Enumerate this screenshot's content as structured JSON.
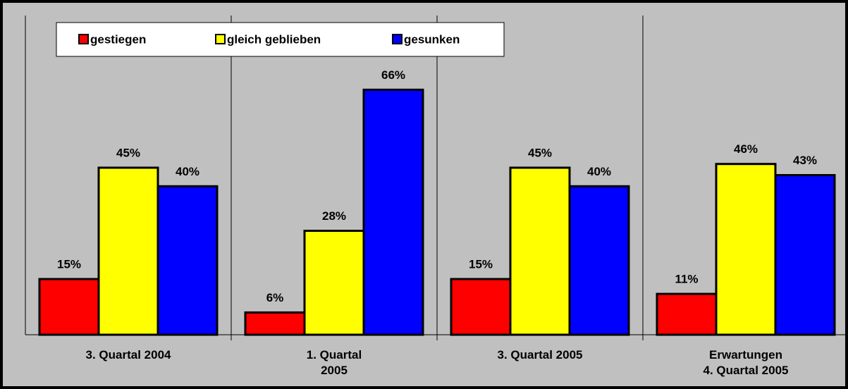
{
  "chart_data": {
    "type": "bar",
    "categories": [
      "3. Quartal 2004",
      "1. Quartal\n2005",
      "3. Quartal 2005",
      "Erwartungen\n4. Quartal 2005"
    ],
    "series": [
      {
        "name": "gestiegen",
        "color": "#ff0000",
        "values": [
          15,
          6,
          15,
          11
        ],
        "value_labels": [
          "15%",
          "6%",
          "15%",
          "11%"
        ]
      },
      {
        "name": "gleich geblieben",
        "color": "#ffff00",
        "values": [
          45,
          28,
          45,
          46
        ],
        "value_labels": [
          "45%",
          "28%",
          "45%",
          "46%"
        ]
      },
      {
        "name": "gesunken",
        "color": "#0000ff",
        "values": [
          40,
          66,
          40,
          43
        ],
        "value_labels": [
          "40%",
          "66%",
          "40%",
          "43%"
        ]
      }
    ],
    "ylim": [
      0,
      86
    ],
    "yticks": []
  }
}
